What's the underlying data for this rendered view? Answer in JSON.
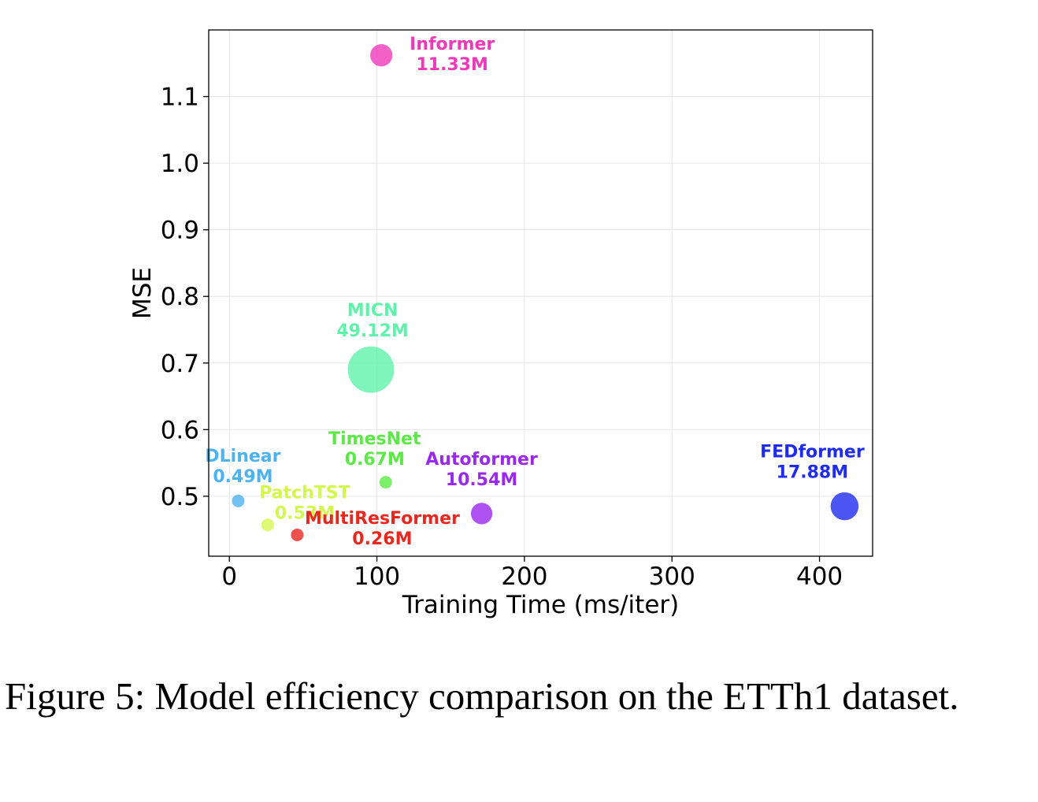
{
  "chart_data": {
    "type": "scatter",
    "xlabel": "Training Time (ms/iter)",
    "ylabel": "MSE",
    "xlim": [
      -14,
      436
    ],
    "ylim": [
      0.41,
      1.2
    ],
    "xticks": [
      0,
      100,
      200,
      300,
      400
    ],
    "xtick_labels": [
      "0",
      "100",
      "200",
      "300",
      "400"
    ],
    "yticks": [
      0.5,
      0.6,
      0.7,
      0.8,
      0.9,
      1.0,
      1.1
    ],
    "ytick_labels": [
      "0.5",
      "0.6",
      "0.7",
      "0.8",
      "0.9",
      "1.0",
      "1.1"
    ],
    "grid": true,
    "bubble_size_meaning": "parameter count",
    "points": [
      {
        "name": "DLinear",
        "x": 6,
        "y": 0.493,
        "params": "0.49M",
        "params_value": 0.49,
        "color": "#4db3f0"
      },
      {
        "name": "PatchTST",
        "x": 26,
        "y": 0.457,
        "params": "0.53M",
        "params_value": 0.53,
        "color": "#d4f74f"
      },
      {
        "name": "MultiResFormer",
        "x": 46,
        "y": 0.442,
        "params": "0.26M",
        "params_value": 0.26,
        "color": "#e8281f"
      },
      {
        "name": "MICN",
        "x": 96,
        "y": 0.69,
        "params": "49.12M",
        "params_value": 49.12,
        "color": "#5ff2aa"
      },
      {
        "name": "Informer",
        "x": 103,
        "y": 1.162,
        "params": "11.33M",
        "params_value": 11.33,
        "color": "#ee3ab9"
      },
      {
        "name": "TimesNet",
        "x": 106,
        "y": 0.521,
        "params": "0.67M",
        "params_value": 0.67,
        "color": "#5ce847"
      },
      {
        "name": "Autoformer",
        "x": 171,
        "y": 0.474,
        "params": "10.54M",
        "params_value": 10.54,
        "color": "#9a28ee"
      },
      {
        "name": "FEDformer",
        "x": 417,
        "y": 0.485,
        "params": "17.88M",
        "params_value": 17.88,
        "color": "#1f2cf0"
      }
    ]
  },
  "caption": "Figure 5:  Model efficiency comparison on the ETTh1 dataset."
}
